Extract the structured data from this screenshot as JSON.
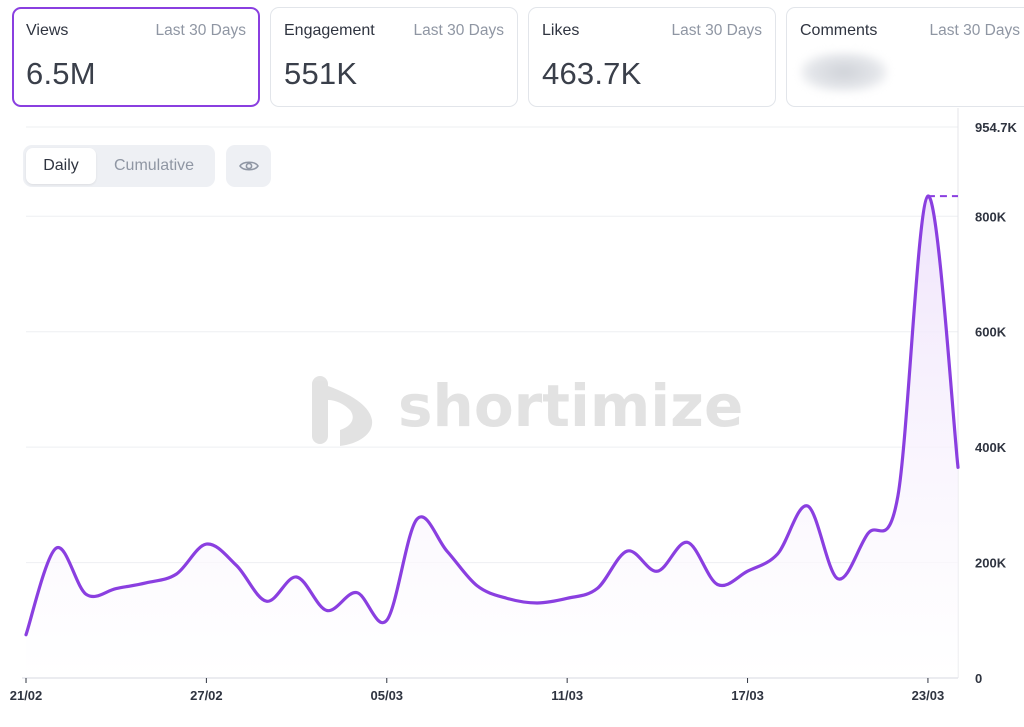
{
  "cards": [
    {
      "label": "Views",
      "range": "Last 30 Days",
      "value": "6.5M",
      "active": true
    },
    {
      "label": "Engagement",
      "range": "Last 30 Days",
      "value": "551K",
      "active": false
    },
    {
      "label": "Likes",
      "range": "Last 30 Days",
      "value": "463.7K",
      "active": false
    },
    {
      "label": "Comments",
      "range": "Last 30 Days",
      "value": "",
      "active": false
    }
  ],
  "toggle": {
    "daily": "Daily",
    "cumulative": "Cumulative"
  },
  "watermark": "shortimize",
  "colors": {
    "accent": "#8a3fe0",
    "grid": "#eeeff2",
    "fill_top": "#efe3fb"
  },
  "chart_data": {
    "type": "area",
    "series": [
      {
        "name": "",
        "values": [
          75000,
          225000,
          145000,
          155000,
          165000,
          180000,
          232000,
          195000,
          133000,
          175000,
          117000,
          148000,
          100000,
          275000,
          220000,
          160000,
          138000,
          130000,
          138000,
          155000,
          220000,
          185000,
          235000,
          162000,
          185000,
          215000,
          298000,
          172000,
          250000,
          315000,
          835000,
          365000
        ]
      }
    ],
    "x_tick_labels": [
      "21/02",
      "27/02",
      "05/03",
      "11/03",
      "17/03",
      "23/03"
    ],
    "x_tick_index": [
      0,
      6,
      12,
      18,
      24,
      30
    ],
    "y_tick_labels": [
      "954.7K",
      "800K",
      "600K",
      "400K",
      "200K",
      "0"
    ],
    "y_tick_values": [
      954700,
      800000,
      600000,
      400000,
      200000,
      0
    ],
    "ylim": [
      0,
      954700
    ],
    "y_axis_position": "right",
    "grid": true,
    "max_marker_value": 835000
  }
}
